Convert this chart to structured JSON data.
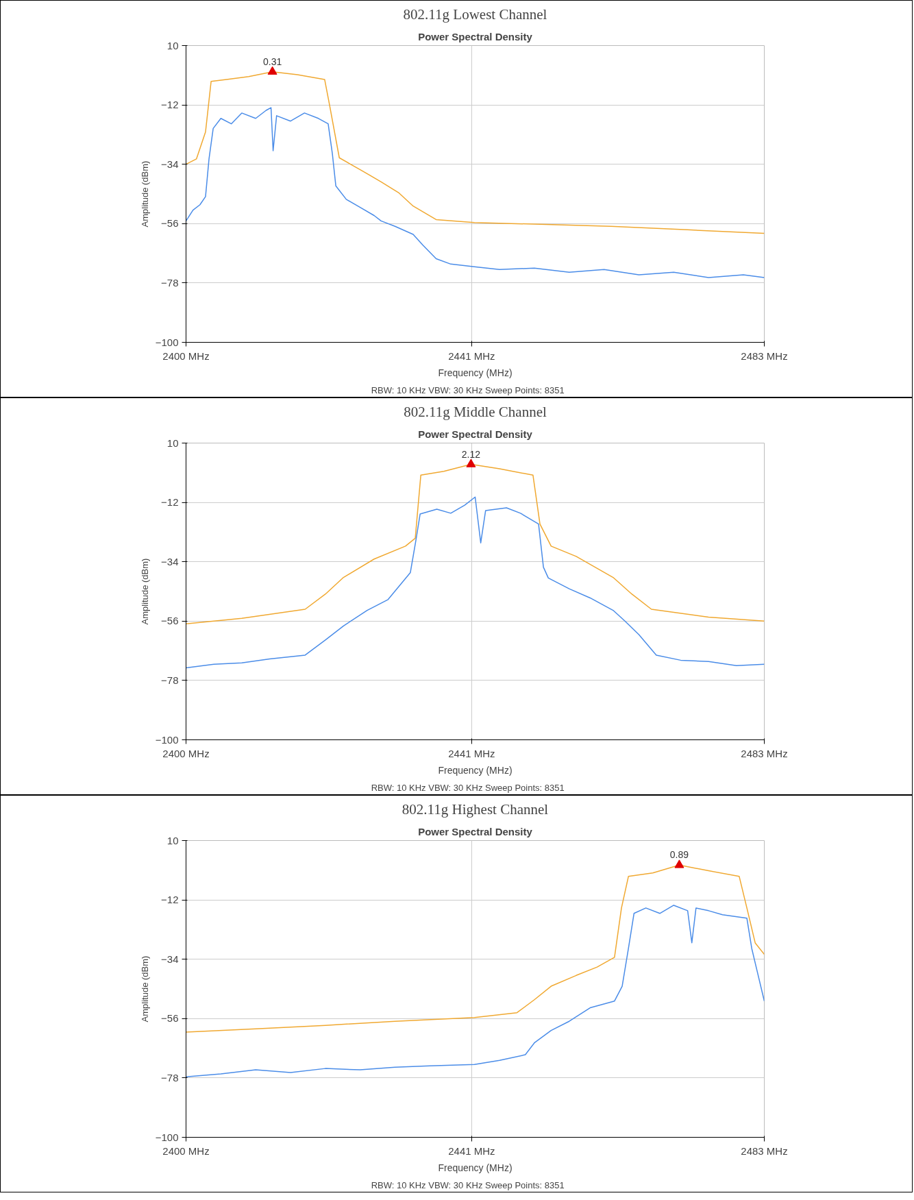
{
  "chart_data": [
    {
      "type": "line",
      "title": "802.11g Lowest Channel",
      "subtitle": "Power Spectral Density",
      "xlabel": "Frequency (MHz)",
      "ylabel": "Amplitude (dBm)",
      "annotations": [
        "RBW: 10 KHz    VBW: 30 KHz    Sweep Points: 8351"
      ],
      "xlim": [
        2400,
        2483
      ],
      "ylim": [
        -100,
        10
      ],
      "xticks": [
        {
          "value": 2400,
          "label": "2400 MHz"
        },
        {
          "value": 2441,
          "label": "2441 MHz"
        },
        {
          "value": 2483,
          "label": "2483 MHz"
        }
      ],
      "yticks": [
        10,
        -12,
        -34,
        -56,
        -78,
        -100
      ],
      "grid": true,
      "series": [
        {
          "color": "#f0a830",
          "x": [
            2400,
            2401.5,
            2402.8,
            2403.6,
            2406,
            2409,
            2412.4,
            2416,
            2419.9,
            2420.6,
            2422,
            2425,
            2428,
            2430.5,
            2432.6,
            2435.9,
            2441.4,
            2450,
            2461,
            2472,
            2483
          ],
          "values": [
            -34,
            -32,
            -22,
            -3.3,
            -2.5,
            -1.5,
            0.3,
            -0.8,
            -2.6,
            -12,
            -31.6,
            -36,
            -40.5,
            -44.5,
            -49.5,
            -54.5,
            -55.6,
            -56.2,
            -57,
            -58.3,
            -59.6
          ]
        },
        {
          "color": "#4a8ce8",
          "x": [
            2400,
            2401,
            2402,
            2402.8,
            2403.3,
            2403.9,
            2405,
            2406.5,
            2408,
            2410,
            2411.5,
            2412.2,
            2412.5,
            2413,
            2415,
            2417,
            2419,
            2420.4,
            2421,
            2421.5,
            2423,
            2425,
            2427,
            2428,
            2430,
            2432.6,
            2434,
            2435.9,
            2438,
            2441.4,
            2445,
            2450,
            2455,
            2460,
            2465,
            2470,
            2475,
            2480,
            2483
          ],
          "values": [
            -55,
            -51,
            -49,
            -46,
            -32,
            -20.7,
            -17,
            -19,
            -15,
            -17,
            -14,
            -13,
            -29,
            -16,
            -18,
            -15,
            -17,
            -19,
            -30,
            -42,
            -47,
            -50,
            -53,
            -55,
            -57,
            -60,
            -64,
            -69,
            -71,
            -72,
            -73,
            -72.5,
            -74,
            -73,
            -75,
            -74,
            -76,
            -75,
            -76
          ]
        },
        {
          "type": "scatter",
          "marker": "triangle",
          "color": "#e00000",
          "x": [
            2412.4
          ],
          "values": [
            0.31
          ],
          "value_labels": [
            "0.31"
          ]
        }
      ]
    },
    {
      "type": "line",
      "title": "802.11g Middle Channel",
      "subtitle": "Power Spectral Density",
      "xlabel": "Frequency (MHz)",
      "ylabel": "Amplitude (dBm)",
      "annotations": [
        "RBW: 10 KHz    VBW: 30 KHz    Sweep Points: 8351"
      ],
      "xlim": [
        2400,
        2483
      ],
      "ylim": [
        -100,
        10
      ],
      "xticks": [
        {
          "value": 2400,
          "label": "2400 MHz"
        },
        {
          "value": 2441,
          "label": "2441 MHz"
        },
        {
          "value": 2483,
          "label": "2483 MHz"
        }
      ],
      "yticks": [
        10,
        -12,
        -34,
        -56,
        -78,
        -100
      ],
      "grid": true,
      "series": [
        {
          "color": "#f0a830",
          "x": [
            2400,
            2408,
            2417.1,
            2420,
            2422.6,
            2427,
            2431.5,
            2432.9,
            2433.7,
            2437,
            2440.9,
            2445,
            2449.8,
            2450.8,
            2452.4,
            2456,
            2461.3,
            2464,
            2466.8,
            2475,
            2483
          ],
          "values": [
            -57,
            -55,
            -51.6,
            -46,
            -39.8,
            -33,
            -28.2,
            -25.3,
            -1.9,
            -0.5,
            2.1,
            0.5,
            -1.9,
            -20,
            -28.2,
            -32,
            -39.8,
            -46,
            -51.6,
            -54.5,
            -56
          ]
        },
        {
          "color": "#4a8ce8",
          "x": [
            2400,
            2404,
            2408,
            2412,
            2417.1,
            2420,
            2422.6,
            2426,
            2429,
            2432.2,
            2433,
            2433.6,
            2436,
            2438,
            2440,
            2441.5,
            2442.3,
            2443,
            2446,
            2448,
            2450.6,
            2451.3,
            2452,
            2455,
            2458,
            2461.3,
            2463,
            2465,
            2467.5,
            2471,
            2475,
            2479,
            2483
          ],
          "values": [
            -73.3,
            -72,
            -71.5,
            -70,
            -68.6,
            -63,
            -57.8,
            -52,
            -48,
            -38,
            -26,
            -16.3,
            -14.5,
            -16,
            -13,
            -10,
            -27,
            -15,
            -14,
            -16,
            -20,
            -36,
            -40,
            -44,
            -47.4,
            -52,
            -56,
            -61,
            -68.6,
            -70.5,
            -71,
            -72.5,
            -72
          ]
        },
        {
          "type": "scatter",
          "marker": "triangle",
          "color": "#e00000",
          "x": [
            2440.9
          ],
          "values": [
            2.12
          ],
          "value_labels": [
            "2.12"
          ]
        }
      ]
    },
    {
      "type": "line",
      "title": "802.11g Highest Channel",
      "subtitle": "Power Spectral Density",
      "xlabel": "Frequency (MHz)",
      "ylabel": "Amplitude (dBm)",
      "annotations": [
        "RBW: 10 KHz    VBW: 30 KHz    Sweep Points: 8351"
      ],
      "xlim": [
        2400,
        2483
      ],
      "ylim": [
        -100,
        10
      ],
      "xticks": [
        {
          "value": 2400,
          "label": "2400 MHz"
        },
        {
          "value": 2441,
          "label": "2441 MHz"
        },
        {
          "value": 2483,
          "label": "2483 MHz"
        }
      ],
      "yticks": [
        10,
        -12,
        -34,
        -56,
        -78,
        -100
      ],
      "grid": true,
      "series": [
        {
          "color": "#f0a830",
          "x": [
            2400,
            2410,
            2420,
            2430,
            2441.4,
            2447.5,
            2450,
            2452.4,
            2456,
            2459,
            2461.5,
            2462.5,
            2463.5,
            2467,
            2470.8,
            2475,
            2479.4,
            2480.5,
            2481.7,
            2483
          ],
          "values": [
            -61,
            -59.8,
            -58.5,
            -57,
            -55.6,
            -53.8,
            -49,
            -44,
            -40,
            -36.9,
            -33.3,
            -15,
            -3.3,
            -2,
            0.9,
            -1.2,
            -3.3,
            -15,
            -28,
            -32.2
          ]
        },
        {
          "color": "#4a8ce8",
          "x": [
            2400,
            2405,
            2410,
            2415,
            2420,
            2425,
            2430,
            2435,
            2441.4,
            2445,
            2448.7,
            2450,
            2452.4,
            2455,
            2458,
            2461.5,
            2462.6,
            2463.5,
            2464.3,
            2466,
            2468,
            2470,
            2472,
            2472.6,
            2473.2,
            2475,
            2477,
            2480.5,
            2481.2,
            2482,
            2483
          ],
          "values": [
            -77.6,
            -76.5,
            -75,
            -76,
            -74.5,
            -75,
            -74,
            -73.5,
            -73,
            -71.5,
            -69.4,
            -65,
            -60.4,
            -57,
            -52,
            -49.5,
            -44,
            -30,
            -17,
            -15,
            -17,
            -14,
            -16,
            -27.9,
            -15,
            -16,
            -17.5,
            -18.8,
            -30,
            -38.7,
            -49.5
          ]
        },
        {
          "type": "scatter",
          "marker": "triangle",
          "color": "#e00000",
          "x": [
            2470.8
          ],
          "values": [
            0.89
          ],
          "value_labels": [
            "0.89"
          ]
        }
      ]
    }
  ]
}
